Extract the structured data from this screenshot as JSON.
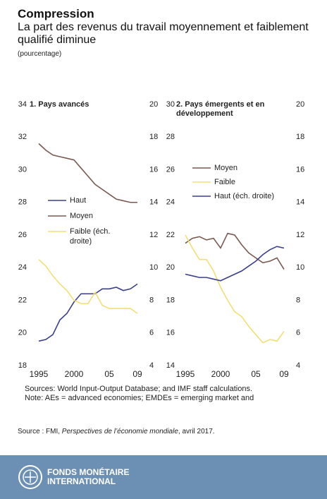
{
  "header": {
    "title": "Compression",
    "subtitle": "La part des revenus du travail moyennement et faiblement qualifié diminue",
    "unit": "(pourcentage)"
  },
  "chart_data": [
    {
      "type": "line",
      "title": "1. Pays avancés",
      "x": [
        1995,
        1996,
        1997,
        1998,
        1999,
        2000,
        2001,
        2002,
        2003,
        2004,
        2005,
        2006,
        2007,
        2008,
        2009
      ],
      "xlim": [
        1994.5,
        2009.5
      ],
      "xticks": [
        1995,
        2000,
        {
          "value": 2005,
          "label": "05"
        },
        {
          "value": 2009,
          "label": "09"
        }
      ],
      "ylim": [
        18,
        34
      ],
      "yticks": [
        18,
        20,
        22,
        24,
        26,
        28,
        30,
        32,
        34
      ],
      "y2lim": [
        4,
        20
      ],
      "y2ticks": [
        4,
        6,
        8,
        10,
        12,
        14,
        16,
        18,
        20
      ],
      "series": [
        {
          "name": "Haut",
          "color": "#3b3f8c",
          "values": [
            19.5,
            19.6,
            19.9,
            20.8,
            21.2,
            21.9,
            22.4,
            22.4,
            22.4,
            22.7,
            22.7,
            22.8,
            22.6,
            22.7,
            23.0
          ]
        },
        {
          "name": "Moyen",
          "color": "#7a5a50",
          "values": [
            31.6,
            31.2,
            30.9,
            30.8,
            30.7,
            30.6,
            30.1,
            29.6,
            29.1,
            28.8,
            28.5,
            28.2,
            28.1,
            28.0,
            28.0
          ]
        },
        {
          "name": "Faible (éch. droite)",
          "color": "#f2df74",
          "axis": "y2",
          "values": [
            10.5,
            10.1,
            9.5,
            9.0,
            8.6,
            8.0,
            7.8,
            7.8,
            8.5,
            7.7,
            7.5,
            7.5,
            7.5,
            7.5,
            7.2
          ]
        }
      ]
    },
    {
      "type": "line",
      "title": "2. Pays émergents et en développement",
      "x": [
        1995,
        1996,
        1997,
        1998,
        1999,
        2000,
        2001,
        2002,
        2003,
        2004,
        2005,
        2006,
        2007,
        2008,
        2009
      ],
      "xlim": [
        1994.5,
        2009.5
      ],
      "xticks": [
        1995,
        2000,
        {
          "value": 2005,
          "label": "05"
        },
        {
          "value": 2009,
          "label": "09"
        }
      ],
      "ylim": [
        14,
        30
      ],
      "yticks": [
        14,
        16,
        18,
        20,
        22,
        24,
        26,
        28,
        30
      ],
      "y2lim": [
        4,
        20
      ],
      "y2ticks": [
        4,
        6,
        8,
        10,
        12,
        14,
        16,
        18,
        20
      ],
      "series": [
        {
          "name": "Moyen",
          "color": "#7a5a50",
          "values": [
            21.5,
            21.8,
            21.9,
            21.7,
            21.8,
            21.2,
            22.1,
            22.0,
            21.4,
            20.9,
            20.6,
            20.3,
            20.4,
            20.6,
            19.9
          ]
        },
        {
          "name": "Faible",
          "color": "#f2df74",
          "values": [
            22.0,
            21.2,
            20.5,
            20.5,
            19.8,
            18.8,
            18.0,
            17.3,
            17.0,
            16.4,
            15.9,
            15.4,
            15.6,
            15.5,
            16.1
          ]
        },
        {
          "name": "Haut (éch. droite)",
          "color": "#3b3f8c",
          "axis": "y2",
          "values": [
            9.6,
            9.5,
            9.4,
            9.4,
            9.3,
            9.2,
            9.4,
            9.6,
            9.8,
            10.1,
            10.4,
            10.8,
            11.1,
            11.3,
            11.2
          ]
        }
      ]
    }
  ],
  "notes": [
    "Sources: World Input-Output Database; and IMF staff calculations.",
    "Note: AEs = advanced economies; EMDEs = emerging market and"
  ],
  "source": {
    "prefix": "Source : FMI, ",
    "publication": "Perspectives de l’économie mondiale",
    "suffix": ", avril 2017."
  },
  "footer": {
    "line1": "FONDS MONÉTAIRE",
    "line2": "INTERNATIONAL"
  }
}
